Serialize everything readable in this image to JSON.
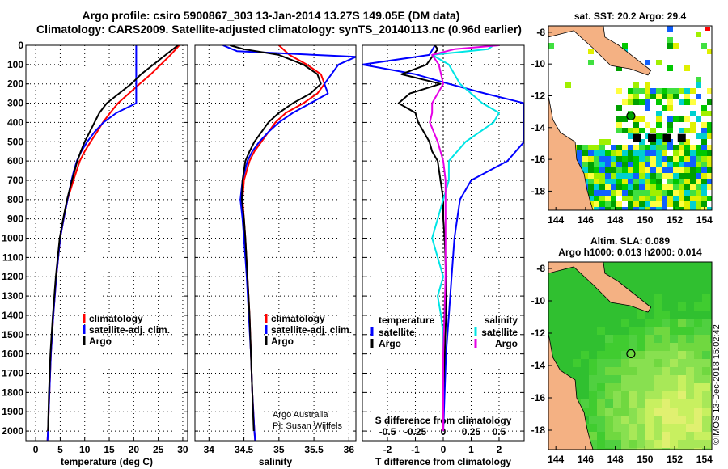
{
  "header": {
    "line1": "Argo profile: csiro 5900867_303 13-Jan-2014 13.27S 149.05E (DM data)",
    "line2": "Climatology: CARS2009. Satellite-adjusted climatology: synTS_20140113.nc (0.96d earlier)"
  },
  "depth_ticks": [
    "0",
    "100",
    "200",
    "300",
    "400",
    "500",
    "600",
    "700",
    "800",
    "900",
    "1000",
    "1100",
    "1200",
    "1300",
    "1400",
    "1500",
    "1600",
    "1700",
    "1800",
    "1900",
    "2000"
  ],
  "colors": {
    "climatology": "#ff0000",
    "satellite": "#0000ff",
    "argo": "#000000",
    "sal_sat": "#00e5e5",
    "sal_argo": "#e600e6",
    "land": "#f4b183",
    "map_water": "#ffffff"
  },
  "chart_data": [
    {
      "type": "line",
      "name": "temperature",
      "xlabel": "temperature (deg C)",
      "ylabel": "depth",
      "xlim": [
        -2,
        31
      ],
      "ylim": [
        2050,
        0
      ],
      "xticks": [
        "0",
        "5",
        "10",
        "15",
        "20",
        "25",
        "30"
      ],
      "grid": true,
      "legend": {
        "placement": "bottom-center",
        "entries": [
          "climatology",
          "satellite-adj. clim.",
          "Argo"
        ]
      },
      "series": [
        {
          "name": "climatology",
          "color": "#ff0000",
          "depth": [
            0,
            50,
            100,
            150,
            200,
            250,
            300,
            350,
            400,
            450,
            500,
            550,
            600,
            700,
            800,
            900,
            1000,
            1200,
            1400,
            1600,
            1800,
            2000,
            2050
          ],
          "values": [
            29.3,
            27.5,
            25.5,
            23.5,
            21.2,
            19.0,
            16.8,
            15.2,
            13.7,
            12.5,
            11.2,
            10.0,
            9.0,
            7.7,
            6.5,
            5.7,
            5.0,
            4.2,
            3.6,
            3.1,
            2.8,
            2.5,
            2.4
          ]
        },
        {
          "name": "satellite-adj. clim.",
          "color": "#0000ff",
          "depth": [
            0,
            100,
            200,
            300,
            350,
            400,
            450,
            500,
            550,
            600,
            650,
            700,
            800,
            900,
            1000,
            1200,
            1400,
            1600,
            1800,
            2000,
            2050
          ],
          "values": [
            20.5,
            20.5,
            20.5,
            20.5,
            16.5,
            13.8,
            12.0,
            10.5,
            9.3,
            8.4,
            7.8,
            7.3,
            6.5,
            5.7,
            5.0,
            4.2,
            3.6,
            3.1,
            2.8,
            2.5,
            2.4
          ]
        },
        {
          "name": "Argo",
          "color": "#000000",
          "depth": [
            0,
            40,
            100,
            150,
            200,
            250,
            300,
            350,
            400,
            450,
            500,
            550,
            600,
            700,
            800,
            900,
            1000,
            1200,
            1400,
            1600,
            1800,
            2000
          ],
          "values": [
            29.0,
            27.0,
            24.0,
            21.5,
            19.5,
            17.0,
            14.5,
            13.0,
            12.0,
            11.0,
            10.0,
            9.2,
            8.5,
            7.4,
            6.4,
            5.6,
            4.9,
            4.1,
            3.5,
            3.0,
            2.7,
            2.5
          ]
        }
      ]
    },
    {
      "type": "line",
      "name": "salinity",
      "xlabel": "salinity",
      "ylabel": "depth",
      "xlim": [
        33.8,
        36.1
      ],
      "ylim": [
        2050,
        0
      ],
      "xticks": [
        "34",
        "34.5",
        "35",
        "35.5",
        "36"
      ],
      "grid": true,
      "legend": {
        "placement": "bottom-center",
        "entries": [
          "climatology",
          "satellite-adj. clim.",
          "Argo"
        ]
      },
      "annotations": [
        "Argo Australia",
        "PI: Susan Wijffels"
      ],
      "series": [
        {
          "name": "climatology",
          "color": "#ff0000",
          "depth": [
            0,
            50,
            100,
            150,
            200,
            250,
            300,
            350,
            400,
            450,
            500,
            550,
            600,
            700,
            800,
            900,
            1000,
            1200,
            1400,
            1600,
            1800,
            2000,
            2050
          ],
          "values": [
            35.0,
            35.15,
            35.4,
            35.6,
            35.65,
            35.55,
            35.35,
            35.1,
            34.95,
            34.85,
            34.75,
            34.65,
            34.58,
            34.5,
            34.48,
            34.5,
            34.52,
            34.55,
            34.58,
            34.6,
            34.62,
            34.65,
            34.66
          ]
        },
        {
          "name": "satellite-adj. clim.",
          "color": "#0000ff",
          "depth": [
            0,
            30,
            60,
            100,
            150,
            200,
            250,
            300,
            350,
            400,
            450,
            500,
            550,
            600,
            700,
            800,
            900,
            1000,
            1200,
            1400,
            1600,
            1800,
            2000,
            2050
          ],
          "values": [
            34.2,
            34.4,
            36.1,
            35.85,
            35.75,
            35.65,
            35.7,
            35.45,
            35.2,
            35.0,
            34.85,
            34.72,
            34.62,
            34.55,
            34.48,
            34.45,
            34.48,
            34.5,
            34.54,
            34.57,
            34.6,
            34.62,
            34.65,
            34.66
          ]
        },
        {
          "name": "Argo",
          "color": "#000000",
          "depth": [
            0,
            20,
            50,
            100,
            150,
            200,
            250,
            300,
            350,
            400,
            450,
            500,
            550,
            600,
            700,
            800,
            900,
            1000,
            1200,
            1400,
            1600,
            1800,
            2000
          ],
          "values": [
            34.3,
            34.5,
            35.0,
            35.35,
            35.55,
            35.6,
            35.45,
            35.2,
            35.0,
            34.85,
            34.75,
            34.65,
            34.58,
            34.52,
            34.48,
            34.47,
            34.5,
            34.52,
            34.55,
            34.58,
            34.6,
            34.62,
            34.64
          ]
        }
      ]
    },
    {
      "type": "line",
      "name": "differences",
      "xlabel": "T difference from climatology",
      "top_xlabel": "S difference from climatology",
      "xlim": [
        -2.9,
        2.9
      ],
      "ylim": [
        2050,
        0
      ],
      "xticks": [
        "-2",
        "-1",
        "0",
        "1",
        "2"
      ],
      "top_xticks": [
        "-0.5",
        "-0.25",
        "0",
        "0.25",
        "0.5"
      ],
      "grid": true,
      "legend": {
        "placement": "bottom",
        "entries": [
          "temperature",
          "satellite",
          "Argo",
          "salinity",
          "satellite",
          "Argo"
        ]
      },
      "series": [
        {
          "name": "temperature satellite",
          "color": "#0000ff",
          "depth": [
            0,
            50,
            100,
            150,
            200,
            250,
            300,
            350,
            400,
            500,
            600,
            700,
            800,
            900,
            1000,
            1200,
            1400,
            1600,
            1800,
            2000
          ],
          "values": [
            -0.3,
            -0.5,
            -2.9,
            -1.0,
            0.2,
            1.5,
            2.9,
            2.9,
            2.9,
            2.9,
            2.3,
            1.0,
            0.6,
            0.5,
            0.4,
            0.3,
            0.2,
            0.1,
            0.05,
            0.0
          ]
        },
        {
          "name": "temperature Argo",
          "color": "#000000",
          "depth": [
            0,
            20,
            60,
            100,
            150,
            200,
            250,
            300,
            350,
            400,
            450,
            500,
            550,
            600,
            700,
            800,
            900,
            1000,
            1200,
            1400,
            1600,
            1800,
            2000
          ],
          "values": [
            -0.3,
            -0.2,
            -0.4,
            -0.6,
            -1.5,
            -0.1,
            -1.2,
            -1.6,
            -1.0,
            -0.9,
            -0.7,
            -0.5,
            -0.4,
            -0.2,
            -0.1,
            0.0,
            0.0,
            0.05,
            0.1,
            0.1,
            0.05,
            0.0,
            0.0
          ]
        },
        {
          "name": "salinity satellite",
          "color": "#00e5e5",
          "depth": [
            0,
            20,
            50,
            100,
            200,
            300,
            350,
            400,
            500,
            600,
            700,
            800,
            900,
            1000,
            1100,
            1200,
            1300,
            1400,
            1500,
            1600,
            1800,
            2000
          ],
          "values": [
            0.45,
            0.4,
            -0.1,
            0.05,
            0.15,
            0.35,
            0.5,
            0.45,
            0.2,
            0.05,
            0.05,
            0.0,
            -0.05,
            -0.1,
            -0.05,
            0.0,
            -0.05,
            -0.02,
            0.0,
            0.0,
            0.0,
            0.0
          ]
        },
        {
          "name": "salinity Argo",
          "color": "#e600e6",
          "depth": [
            0,
            20,
            50,
            100,
            200,
            250,
            300,
            350,
            400,
            500,
            600,
            700,
            800,
            1000,
            1200,
            1400,
            1600,
            1800,
            2000
          ],
          "values": [
            0.5,
            0.1,
            -0.1,
            -0.04,
            0.0,
            -0.05,
            -0.1,
            -0.1,
            -0.12,
            -0.05,
            0.0,
            0.02,
            0.02,
            0.02,
            0.02,
            0.01,
            0.0,
            0.0,
            0.0
          ]
        }
      ]
    },
    {
      "type": "heatmap",
      "name": "sst-map",
      "title": "sat. SST: 20.2 Argo: 29.4",
      "xticks": [
        "144",
        "146",
        "148",
        "150",
        "152",
        "154"
      ],
      "yticks": [
        "-8",
        "-10",
        "-12",
        "-14",
        "-16",
        "-18"
      ],
      "xlim": [
        143.5,
        154.5
      ],
      "ylim": [
        -19.2,
        -7.6
      ],
      "argo_position": {
        "lon": 149.05,
        "lat": -13.27
      }
    },
    {
      "type": "heatmap",
      "name": "sla-map",
      "title": "Altim. SLA: 0.089",
      "subtitle": "Argo h1000: 0.013 h2000: 0.014",
      "xticks": [
        "144",
        "146",
        "148",
        "150",
        "152",
        "154"
      ],
      "yticks": [
        "-8",
        "-10",
        "-12",
        "-14",
        "-16",
        "-18"
      ],
      "xlim": [
        143.5,
        154.5
      ],
      "ylim": [
        -19.2,
        -7.6
      ],
      "argo_position": {
        "lon": 149.05,
        "lat": -13.27
      }
    }
  ],
  "credit": "©IMOS 13-Dec-2018 15:02:42"
}
